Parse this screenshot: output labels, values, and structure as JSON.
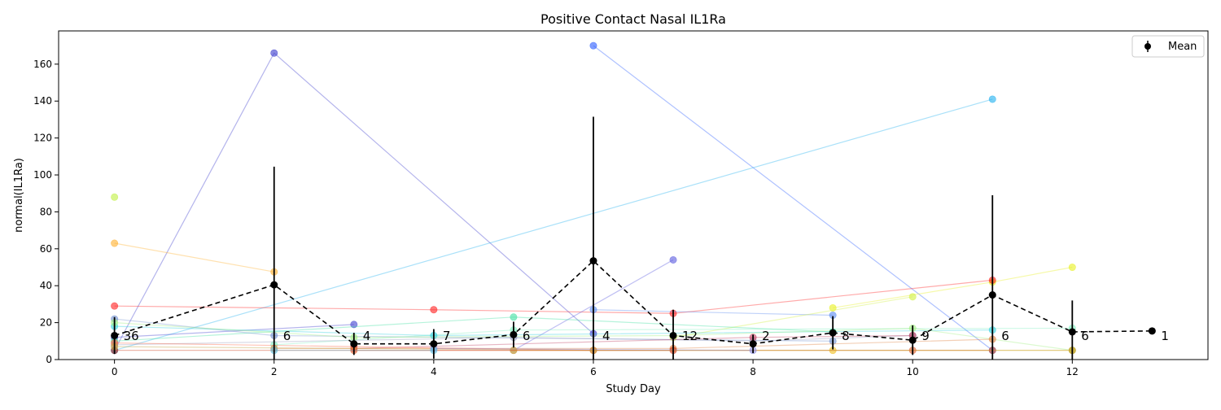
{
  "chart_data": {
    "type": "line",
    "title": "Positive Contact Nasal IL1Ra",
    "xlabel": "Study Day",
    "ylabel": "normal(IL1Ra)",
    "xlim": [
      -0.7,
      13.7
    ],
    "ylim": [
      0,
      178
    ],
    "xticks": [
      0,
      2,
      4,
      6,
      8,
      10,
      12
    ],
    "yticks": [
      0,
      20,
      40,
      60,
      80,
      100,
      120,
      140,
      160
    ],
    "grid": false,
    "legend": {
      "position": "top-right",
      "entries": [
        "Mean"
      ]
    },
    "mean": {
      "name": "Mean",
      "color": "#000000",
      "x": [
        0,
        2,
        3,
        4,
        5,
        6,
        7,
        8,
        9,
        10,
        11,
        12,
        13
      ],
      "y": [
        13,
        40.5,
        8.5,
        8.5,
        13.5,
        53.5,
        13,
        8.5,
        14.5,
        10.5,
        35,
        15,
        15.5
      ],
      "err": [
        10,
        64,
        6,
        8,
        7,
        78,
        14,
        5,
        9,
        8,
        54,
        17,
        0
      ],
      "n": [
        "36",
        "6",
        "4",
        "7",
        "6",
        "4",
        "12",
        "2",
        "8",
        "9",
        "6",
        "6",
        "1"
      ]
    },
    "subjects": [
      {
        "color": "#3a3acd",
        "x": [
          0,
          2,
          6
        ],
        "y": [
          5,
          166,
          14
        ]
      },
      {
        "color": "#2b5cff",
        "x": [
          6,
          11
        ],
        "y": [
          170,
          5
        ]
      },
      {
        "color": "#20b0f0",
        "x": [
          0,
          11
        ],
        "y": [
          5,
          141
        ]
      },
      {
        "color": "#ffb02e",
        "x": [
          0,
          2
        ],
        "y": [
          63,
          47.5
        ]
      },
      {
        "color": "#e8f020",
        "x": [
          9,
          11,
          12
        ],
        "y": [
          28,
          42,
          50
        ]
      },
      {
        "color": "#ff2020",
        "x": [
          0,
          4,
          7,
          11
        ],
        "y": [
          29,
          27,
          25,
          43
        ]
      },
      {
        "color": "#5a5ae0",
        "x": [
          5,
          7
        ],
        "y": [
          5,
          54
        ]
      },
      {
        "color": "#4040d0",
        "x": [
          0,
          3
        ],
        "y": [
          12,
          19
        ]
      },
      {
        "color": "#5a8af0",
        "x": [
          6,
          9
        ],
        "y": [
          27,
          24
        ]
      },
      {
        "color": "#c0f040",
        "x": [
          0
        ],
        "y": [
          88
        ]
      },
      {
        "color": "#d0f040",
        "x": [
          7,
          10
        ],
        "y": [
          12,
          34
        ]
      },
      {
        "color": "#40e0a0",
        "x": [
          0,
          5,
          9
        ],
        "y": [
          10,
          23,
          15
        ]
      },
      {
        "color": "#7090d0",
        "x": [
          0,
          2,
          9
        ],
        "y": [
          22,
          13,
          10
        ]
      },
      {
        "color": "#80f0c0",
        "x": [
          2,
          5,
          12
        ],
        "y": [
          8,
          16,
          17
        ]
      },
      {
        "color": "#30d0e0",
        "x": [
          0,
          4,
          11
        ],
        "y": [
          18,
          13,
          16
        ]
      },
      {
        "color": "#a0f080",
        "x": [
          0,
          3,
          7,
          10,
          12
        ],
        "y": [
          20,
          12,
          13,
          17,
          5
        ]
      },
      {
        "color": "#9aa0c0",
        "x": [
          0,
          5,
          8,
          10
        ],
        "y": [
          8,
          12,
          10,
          13
        ]
      },
      {
        "color": "#c04060",
        "x": [
          3,
          8,
          10
        ],
        "y": [
          6,
          12,
          13
        ]
      },
      {
        "color": "#e08040",
        "x": [
          2,
          7,
          11
        ],
        "y": [
          6,
          6,
          11
        ]
      },
      {
        "color": "#ff6040",
        "x": [
          0,
          3,
          6
        ],
        "y": [
          9,
          7,
          5
        ]
      },
      {
        "color": "#f0c020",
        "x": [
          5,
          9,
          12
        ],
        "y": [
          5,
          5,
          5
        ]
      },
      {
        "color": "#d04020",
        "x": [
          0,
          7
        ],
        "y": [
          5,
          5
        ]
      },
      {
        "color": "#e06030",
        "x": [
          3,
          10,
          11
        ],
        "y": [
          5,
          5,
          5
        ]
      },
      {
        "color": "#c0a040",
        "x": [
          0,
          6,
          12
        ],
        "y": [
          7,
          5,
          5
        ]
      },
      {
        "color": "#8a8adf",
        "x": [
          4,
          8
        ],
        "y": [
          6,
          5
        ]
      },
      {
        "color": "#60c0e0",
        "x": [
          2,
          4
        ],
        "y": [
          5,
          5
        ]
      }
    ]
  }
}
